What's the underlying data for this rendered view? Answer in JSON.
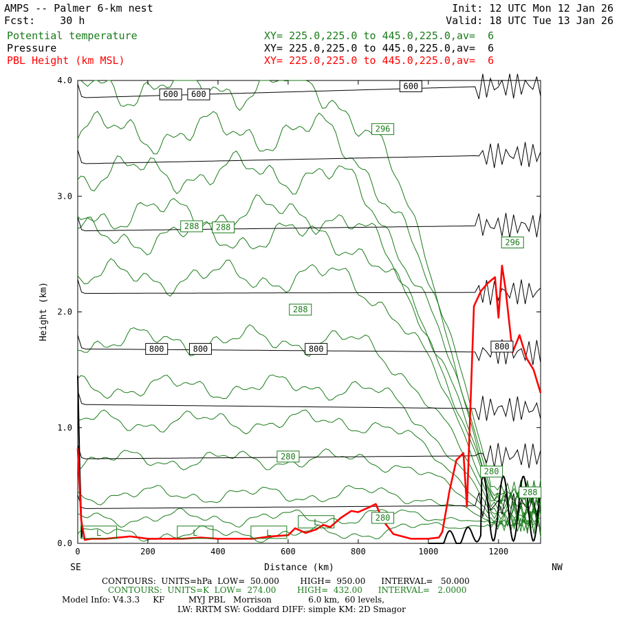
{
  "header": {
    "title": "AMPS -- Palmer 6-km nest",
    "fcst": "Fcst:    30 h",
    "init": "Init: 12 UTC Mon 12 Jan 26",
    "valid": "Valid: 18 UTC Tue 13 Jan 26",
    "fields": [
      {
        "name": "Potential temperature",
        "xy": "XY= 225.0,225.0 to 445.0,225.0,av=  6",
        "color": "#1a7a1a"
      },
      {
        "name": "Pressure",
        "xy": "XY= 225.0,225.0 to 445.0,225.0,av=  6",
        "color": "#000000"
      },
      {
        "name": "PBL Height (km MSL)",
        "xy": "XY= 225.0,225.0 to 445.0,225.0,av=  6",
        "color": "#ff0000"
      }
    ]
  },
  "footer": {
    "contours_k": "CONTOURS:  UNITS=hPa  LOW=  50.000        HIGH=  950.00      INTERVAL=   50.000",
    "contours_g": "CONTOURS:  UNITS=K  LOW=  274.00        HIGH=  432.00      INTERVAL=   2.0000",
    "model1": "Model Info: V4.3.3     KF         MYJ PBL   Morrison              6.0 km,  60 levels,",
    "model2": "LW: RRTM SW: Goddard DIFF: simple KM: 2D Smagor"
  },
  "chart_data": {
    "type": "line",
    "title": "AMPS -- Palmer 6-km nest",
    "xlabel": "Distance (km)",
    "ylabel": "Height (km)",
    "xlim": [
      0,
      1320
    ],
    "ylim": [
      0,
      4.0
    ],
    "x_ticks": [
      0,
      200,
      400,
      600,
      800,
      1000,
      1200
    ],
    "x_tick_labels": [
      "0",
      "200",
      "400",
      "600",
      "800",
      "1000",
      "1200"
    ],
    "y_ticks": [
      0,
      1,
      2,
      3,
      4
    ],
    "y_tick_labels": [
      "0.0",
      "1.0",
      "2.0",
      "3.0",
      "4.0"
    ],
    "x_end_labels": {
      "left": "SE",
      "right": "NW"
    },
    "colors": {
      "pressure": "#000000",
      "theta": "#1a7a1a",
      "pbl": "#ff0000"
    },
    "pressure_contours_hPa": {
      "levels": [
        950,
        900,
        850,
        800,
        750,
        700,
        650,
        600
      ],
      "heights_km_at_x0": [
        0.3,
        0.73,
        1.2,
        1.68,
        2.16,
        2.7,
        3.28,
        3.85
      ],
      "heights_km_at_x1300": [
        0.33,
        0.76,
        1.16,
        1.65,
        2.17,
        2.75,
        3.36,
        3.96
      ]
    },
    "theta_contours_K": {
      "levels": [
        274,
        276,
        278,
        280,
        282,
        284,
        286,
        288,
        290,
        292,
        294,
        296,
        298
      ],
      "heights_km_at_x0": [
        0.08,
        0.22,
        0.42,
        0.72,
        1.05,
        1.35,
        1.75,
        2.3,
        2.65,
        2.85,
        3.2,
        3.55,
        3.95
      ]
    },
    "series": [
      {
        "name": "PBL Height (km MSL)",
        "x": [
          0,
          10,
          20,
          40,
          80,
          150,
          200,
          250,
          300,
          350,
          400,
          450,
          500,
          550,
          600,
          620,
          650,
          680,
          700,
          720,
          750,
          780,
          800,
          830,
          850,
          870,
          900,
          950,
          1000,
          1030,
          1040,
          1060,
          1080,
          1100,
          1110,
          1130,
          1150,
          1170,
          1190,
          1200,
          1210,
          1220,
          1240,
          1260,
          1280,
          1300,
          1320
        ],
        "values": [
          0.82,
          0.2,
          0.03,
          0.04,
          0.04,
          0.06,
          0.04,
          0.04,
          0.04,
          0.05,
          0.04,
          0.04,
          0.04,
          0.06,
          0.07,
          0.13,
          0.09,
          0.12,
          0.16,
          0.14,
          0.22,
          0.28,
          0.27,
          0.31,
          0.34,
          0.2,
          0.08,
          0.04,
          0.04,
          0.05,
          0.1,
          0.45,
          0.72,
          0.78,
          0.32,
          2.05,
          2.18,
          2.25,
          2.3,
          1.95,
          2.4,
          2.2,
          1.65,
          1.8,
          1.6,
          1.5,
          1.3
        ]
      }
    ],
    "contour_labels": [
      {
        "text": "600",
        "x": 265,
        "y": 3.88,
        "color": "#000000"
      },
      {
        "text": "600",
        "x": 345,
        "y": 3.88,
        "color": "#000000"
      },
      {
        "text": "600",
        "x": 950,
        "y": 3.95,
        "color": "#000000"
      },
      {
        "text": "800",
        "x": 225,
        "y": 1.68,
        "color": "#000000"
      },
      {
        "text": "800",
        "x": 350,
        "y": 1.68,
        "color": "#000000"
      },
      {
        "text": "800",
        "x": 680,
        "y": 1.68,
        "color": "#000000"
      },
      {
        "text": "800",
        "x": 1210,
        "y": 1.7,
        "color": "#000000"
      },
      {
        "text": "296",
        "x": 870,
        "y": 3.58,
        "color": "#1a7a1a"
      },
      {
        "text": "296",
        "x": 1240,
        "y": 2.6,
        "color": "#1a7a1a"
      },
      {
        "text": "288",
        "x": 325,
        "y": 2.74,
        "color": "#1a7a1a"
      },
      {
        "text": "288",
        "x": 415,
        "y": 2.73,
        "color": "#1a7a1a"
      },
      {
        "text": "288",
        "x": 635,
        "y": 2.02,
        "color": "#1a7a1a"
      },
      {
        "text": "280",
        "x": 600,
        "y": 0.75,
        "color": "#1a7a1a"
      },
      {
        "text": "280",
        "x": 1180,
        "y": 0.62,
        "color": "#1a7a1a"
      },
      {
        "text": "280",
        "x": 870,
        "y": 0.22,
        "color": "#1a7a1a"
      },
      {
        "text": "288",
        "x": 1290,
        "y": 0.44,
        "color": "#1a7a1a"
      }
    ],
    "low_labels": [
      {
        "text": "L",
        "x": 60,
        "y": 0.09
      },
      {
        "text": "L",
        "x": 335,
        "y": 0.09
      },
      {
        "text": "L",
        "x": 545,
        "y": 0.09
      },
      {
        "text": "L",
        "x": 680,
        "y": 0.18
      }
    ]
  }
}
